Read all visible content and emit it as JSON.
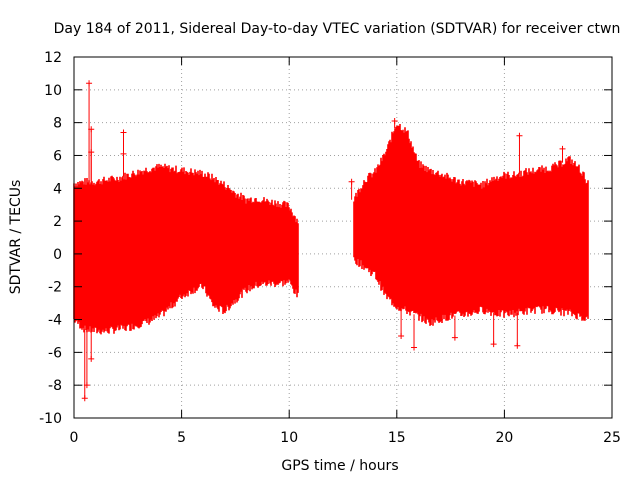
{
  "chart_data": {
    "type": "scatter",
    "title": "Day 184 of 2011, Sidereal Day-to-day VTEC variation (SDTVAR) for receiver ctwn",
    "xlabel": "GPS time / hours",
    "ylabel": "SDTVAR / TECUs",
    "xlim": [
      0,
      25
    ],
    "ylim": [
      -10,
      12
    ],
    "xticks": [
      0,
      5,
      10,
      15,
      20,
      25
    ],
    "yticks": [
      -10,
      -8,
      -6,
      -4,
      -2,
      0,
      2,
      4,
      6,
      8,
      10,
      12
    ],
    "grid": true,
    "marker": "+",
    "color": "#ff0000",
    "series": [
      {
        "name": "SDTVAR",
        "segments": [
          {
            "x": [
              0.0,
              0.5,
              1.0,
              1.5,
              2.0,
              2.5,
              3.0,
              3.5,
              4.0,
              4.5,
              5.0,
              5.5,
              6.0,
              6.5,
              7.0,
              7.5,
              8.0,
              8.5,
              9.0,
              9.5,
              10.0,
              10.4
            ],
            "upper": [
              4.3,
              4.4,
              4.4,
              4.5,
              4.6,
              4.8,
              5.0,
              5.2,
              5.3,
              5.2,
              5.1,
              5.0,
              4.9,
              4.6,
              4.2,
              3.7,
              3.3,
              3.4,
              3.2,
              3.1,
              2.9,
              2.0
            ],
            "lower": [
              -4.0,
              -4.6,
              -4.7,
              -4.7,
              -4.6,
              -4.5,
              -4.3,
              -4.1,
              -3.8,
              -3.2,
              -2.6,
              -2.2,
              -2.0,
              -3.2,
              -3.5,
              -2.8,
              -2.2,
              -1.9,
              -1.8,
              -1.8,
              -1.7,
              -2.6
            ]
          },
          {
            "x": [
              13.0,
              13.5,
              14.0,
              14.5,
              15.0,
              15.5,
              16.0,
              16.5,
              17.0,
              17.5,
              18.0,
              18.5,
              19.0,
              19.5,
              20.0,
              20.5,
              21.0,
              21.5,
              22.0,
              22.5,
              23.0,
              23.5,
              23.9
            ],
            "upper": [
              3.3,
              4.5,
              5.0,
              6.2,
              8.0,
              7.4,
              5.5,
              5.1,
              4.9,
              4.6,
              4.4,
              4.3,
              4.2,
              4.6,
              4.8,
              4.8,
              5.0,
              5.1,
              5.2,
              5.4,
              5.8,
              5.2,
              4.3
            ],
            "lower": [
              -0.3,
              -0.8,
              -1.3,
              -2.6,
              -3.2,
              -3.5,
              -3.8,
              -4.2,
              -4.0,
              -3.8,
              -3.7,
              -3.6,
              -3.4,
              -3.6,
              -3.7,
              -3.6,
              -3.5,
              -3.4,
              -3.4,
              -3.5,
              -3.6,
              -3.8,
              -4.0
            ]
          }
        ],
        "outliers": [
          [
            0.7,
            10.4
          ],
          [
            0.8,
            7.6
          ],
          [
            0.8,
            6.2
          ],
          [
            0.5,
            -8.8
          ],
          [
            0.6,
            -8.0
          ],
          [
            0.8,
            -6.4
          ],
          [
            2.3,
            7.4
          ],
          [
            2.3,
            6.1
          ],
          [
            12.9,
            4.4
          ],
          [
            14.9,
            8.1
          ],
          [
            15.8,
            -5.7
          ],
          [
            17.7,
            -5.1
          ],
          [
            19.5,
            -5.5
          ],
          [
            20.7,
            7.2
          ],
          [
            20.6,
            -5.6
          ],
          [
            15.2,
            -5.0
          ],
          [
            22.7,
            6.4
          ]
        ]
      }
    ]
  }
}
